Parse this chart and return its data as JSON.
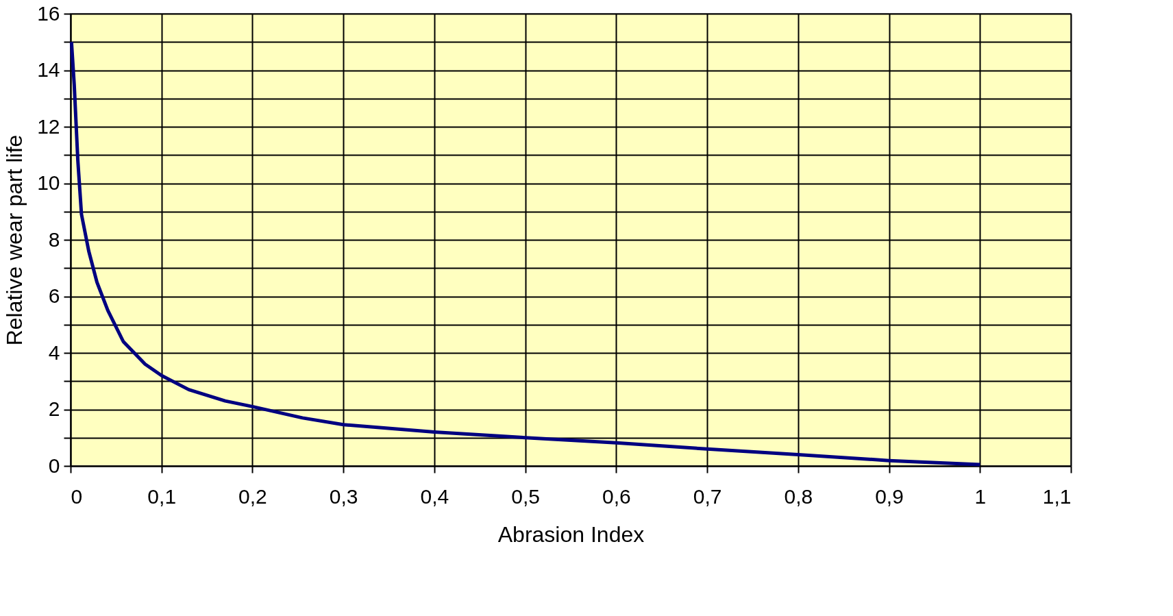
{
  "chart_data": {
    "type": "line",
    "xlabel": "Abrasion Index",
    "ylabel": "Relative wear part life",
    "x": [
      0.001,
      0.004,
      0.008,
      0.012,
      0.02,
      0.029,
      0.041,
      0.058,
      0.082,
      0.1,
      0.13,
      0.17,
      0.2,
      0.255,
      0.3,
      0.4,
      0.5,
      0.6,
      0.7,
      0.8,
      0.9,
      1.0
    ],
    "series": [
      {
        "color": "#000080",
        "values": [
          15,
          13.5,
          10.8,
          8.9,
          7.6,
          6.5,
          5.5,
          4.4,
          3.6,
          3.2,
          2.7,
          2.3,
          2.1,
          1.7,
          1.46,
          1.2,
          1.0,
          0.82,
          0.6,
          0.4,
          0.19,
          0.05
        ]
      }
    ],
    "xlim": [
      0,
      1.1
    ],
    "ylim": [
      0,
      16
    ],
    "xticks": [
      0,
      {
        "value": 0.1,
        "label": "0,1"
      },
      {
        "value": 0.2,
        "label": "0,2"
      },
      {
        "value": 0.3,
        "label": "0,3"
      },
      {
        "value": 0.4,
        "label": "0,4"
      },
      {
        "value": 0.5,
        "label": "0,5"
      },
      {
        "value": 0.6,
        "label": "0,6"
      },
      {
        "value": 0.7,
        "label": "0,7"
      },
      {
        "value": 0.8,
        "label": "0,8"
      },
      {
        "value": 0.9,
        "label": "0,9"
      },
      1,
      {
        "value": 1.1,
        "label": "1,1"
      }
    ],
    "yticks": [
      0,
      {
        "value": 1,
        "label": null
      },
      2,
      {
        "value": 3,
        "label": null
      },
      4,
      {
        "value": 5,
        "label": null
      },
      6,
      {
        "value": 7,
        "label": null
      },
      8,
      {
        "value": 9,
        "label": null
      },
      10,
      {
        "value": 11,
        "label": null
      },
      12,
      {
        "value": 13,
        "label": null
      },
      14,
      {
        "value": 15,
        "label": null
      },
      16
    ],
    "grid": true,
    "marker": "none",
    "line_style": "solid"
  }
}
